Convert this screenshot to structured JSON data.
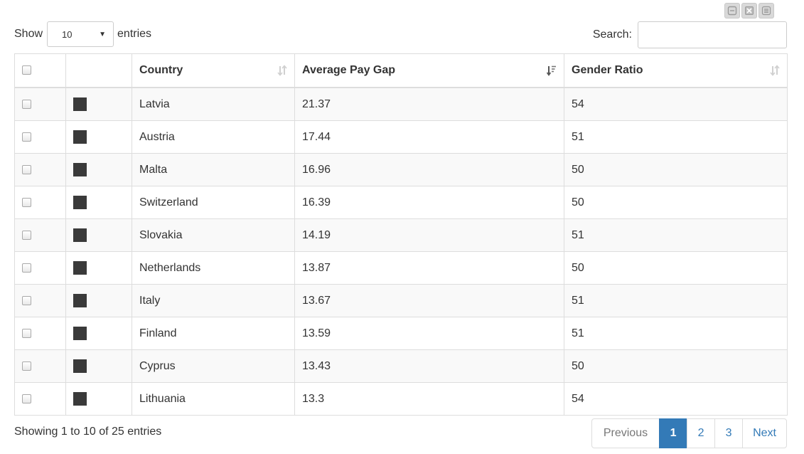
{
  "toolbar": {
    "icons": [
      "collapse-icon",
      "fullscreen-icon",
      "menu-icon"
    ]
  },
  "length_menu": {
    "show_label": "Show",
    "selected_value": "10",
    "entries_label": "entries"
  },
  "search": {
    "label": "Search:",
    "value": "",
    "placeholder": ""
  },
  "table": {
    "columns": [
      "",
      "",
      "Country",
      "Average Pay Gap",
      "Gender Ratio"
    ],
    "sorted_column": "Average Pay Gap",
    "sort_direction": "descending",
    "swatch_color": "#3a3a3a",
    "rows": [
      {
        "country": "Latvia",
        "pay_gap": "21.37",
        "gender_ratio": "54",
        "checked": false
      },
      {
        "country": "Austria",
        "pay_gap": "17.44",
        "gender_ratio": "51",
        "checked": false
      },
      {
        "country": "Malta",
        "pay_gap": "16.96",
        "gender_ratio": "50",
        "checked": false
      },
      {
        "country": "Switzerland",
        "pay_gap": "16.39",
        "gender_ratio": "50",
        "checked": false
      },
      {
        "country": "Slovakia",
        "pay_gap": "14.19",
        "gender_ratio": "51",
        "checked": false
      },
      {
        "country": "Netherlands",
        "pay_gap": "13.87",
        "gender_ratio": "50",
        "checked": false
      },
      {
        "country": "Italy",
        "pay_gap": "13.67",
        "gender_ratio": "51",
        "checked": false
      },
      {
        "country": "Finland",
        "pay_gap": "13.59",
        "gender_ratio": "51",
        "checked": false
      },
      {
        "country": "Cyprus",
        "pay_gap": "13.43",
        "gender_ratio": "50",
        "checked": false
      },
      {
        "country": "Lithuania",
        "pay_gap": "13.3",
        "gender_ratio": "54",
        "checked": false
      }
    ]
  },
  "info": {
    "text": "Showing 1 to 10 of 25 entries"
  },
  "pagination": {
    "previous_label": "Previous",
    "next_label": "Next",
    "pages": [
      "1",
      "2",
      "3"
    ],
    "active_page": "1",
    "accent_color": "#337ab7"
  }
}
